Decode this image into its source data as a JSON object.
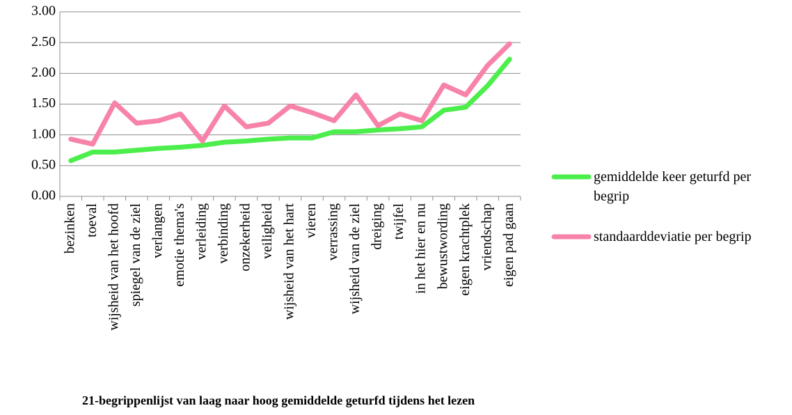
{
  "chart_data": {
    "type": "line",
    "title": "21-begrippenlijst van laag naar hoog gemiddelde geturfd tijdens het lezen",
    "categories": [
      "bezinken",
      "toeval",
      "wijsheid van het hoofd",
      "spiegel van de ziel",
      "verlangen",
      "emotie thema's",
      "verleiding",
      "verbinding",
      "onzekerheid",
      "veiligheid",
      "wijsheid van het hart",
      "vieren",
      "verrassing",
      "wijsheid van de ziel",
      "dreiging",
      "twijfel",
      "in het hier en nu",
      "bewustwording",
      "eigen krachtplek",
      "vriendschap",
      "eigen pad gaan"
    ],
    "series": [
      {
        "name": "gemiddelde keer geturfd per begrip",
        "color": "#4cee4c",
        "values": [
          0.58,
          0.72,
          0.72,
          0.75,
          0.78,
          0.8,
          0.83,
          0.88,
          0.9,
          0.93,
          0.95,
          0.95,
          1.05,
          1.05,
          1.08,
          1.1,
          1.13,
          1.4,
          1.45,
          1.8,
          2.23
        ]
      },
      {
        "name": "standaarddeviatie per begrip",
        "color": "#f783a8",
        "values": [
          0.93,
          0.85,
          1.52,
          1.19,
          1.23,
          1.34,
          0.9,
          1.47,
          1.13,
          1.19,
          1.47,
          1.36,
          1.23,
          1.65,
          1.15,
          1.34,
          1.23,
          1.81,
          1.65,
          2.13,
          2.48
        ]
      }
    ],
    "ylim": [
      0,
      3
    ],
    "yticks": [
      {
        "value": 0,
        "label": "0.00"
      },
      {
        "value": 0.5,
        "label": "0.50"
      },
      {
        "value": 1,
        "label": "1.00"
      },
      {
        "value": 1.5,
        "label": "1.50"
      },
      {
        "value": 2,
        "label": "2.00"
      },
      {
        "value": 2.5,
        "label": "2.50"
      },
      {
        "value": 3,
        "label": "3.00"
      }
    ],
    "grid": true,
    "legend": "right"
  }
}
